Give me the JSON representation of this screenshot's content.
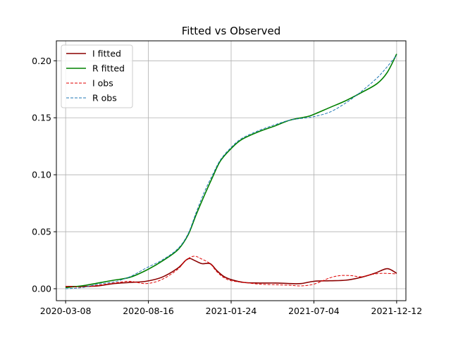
{
  "chart_data": {
    "type": "line",
    "title": "Fitted vs Observed",
    "xlabel": "",
    "ylabel": "",
    "x_type": "date",
    "xlim": [
      "2020-02-19",
      "2021-12-30"
    ],
    "ylim": [
      -0.0105,
      0.2175
    ],
    "x_ticks": [
      "2020-03-08",
      "2020-08-16",
      "2021-01-24",
      "2021-07-04",
      "2021-12-12"
    ],
    "y_ticks": [
      0.0,
      0.05,
      0.1,
      0.15,
      0.2
    ],
    "y_tick_labels": [
      "0.00",
      "0.05",
      "0.10",
      "0.15",
      "0.20"
    ],
    "grid": true,
    "legend_position": "top-left",
    "series": [
      {
        "name": "I fitted",
        "color": "#8b0000",
        "style": "solid",
        "points": [
          [
            "2020-03-08",
            0.002
          ],
          [
            "2020-04-09",
            0.002
          ],
          [
            "2020-05-10",
            0.0025
          ],
          [
            "2020-06-10",
            0.0045
          ],
          [
            "2020-07-11",
            0.0055
          ],
          [
            "2020-08-11",
            0.0065
          ],
          [
            "2020-09-11",
            0.01
          ],
          [
            "2020-10-12",
            0.018
          ],
          [
            "2020-10-28",
            0.025
          ],
          [
            "2020-11-05",
            0.0265
          ],
          [
            "2020-11-13",
            0.025
          ],
          [
            "2020-11-28",
            0.022
          ],
          [
            "2020-12-14",
            0.022
          ],
          [
            "2020-12-27",
            0.016
          ],
          [
            "2021-01-09",
            0.011
          ],
          [
            "2021-01-24",
            0.008
          ],
          [
            "2021-02-18",
            0.0055
          ],
          [
            "2021-03-20",
            0.005
          ],
          [
            "2021-04-20",
            0.005
          ],
          [
            "2021-05-19",
            0.0045
          ],
          [
            "2021-06-09",
            0.0045
          ],
          [
            "2021-07-04",
            0.0065
          ],
          [
            "2021-08-04",
            0.007
          ],
          [
            "2021-09-04",
            0.0075
          ],
          [
            "2021-10-04",
            0.01
          ],
          [
            "2021-10-30",
            0.0135
          ],
          [
            "2021-11-19",
            0.0172
          ],
          [
            "2021-11-29",
            0.017
          ],
          [
            "2021-12-12",
            0.0135
          ]
        ]
      },
      {
        "name": "R fitted",
        "color": "#008000",
        "style": "solid",
        "points": [
          [
            "2020-03-08",
            0.001
          ],
          [
            "2020-04-09",
            0.0025
          ],
          [
            "2020-05-10",
            0.005
          ],
          [
            "2020-06-10",
            0.0075
          ],
          [
            "2020-07-11",
            0.01
          ],
          [
            "2020-08-11",
            0.016
          ],
          [
            "2020-09-11",
            0.024
          ],
          [
            "2020-10-12",
            0.034
          ],
          [
            "2020-11-01",
            0.047
          ],
          [
            "2020-11-17",
            0.065
          ],
          [
            "2020-12-03",
            0.082
          ],
          [
            "2020-12-19",
            0.098
          ],
          [
            "2021-01-03",
            0.112
          ],
          [
            "2021-01-24",
            0.123
          ],
          [
            "2021-02-14",
            0.131
          ],
          [
            "2021-03-20",
            0.138
          ],
          [
            "2021-04-20",
            0.143
          ],
          [
            "2021-05-19",
            0.148
          ],
          [
            "2021-06-21",
            0.151
          ],
          [
            "2021-07-04",
            0.153
          ],
          [
            "2021-08-04",
            0.159
          ],
          [
            "2021-09-04",
            0.165
          ],
          [
            "2021-10-04",
            0.172
          ],
          [
            "2021-11-04",
            0.18
          ],
          [
            "2021-11-24",
            0.19
          ],
          [
            "2021-12-12",
            0.206
          ]
        ]
      },
      {
        "name": "I obs",
        "color": "#e00000",
        "style": "dashed",
        "points": [
          [
            "2020-03-08",
            0.002
          ],
          [
            "2020-04-09",
            0.0015
          ],
          [
            "2020-05-10",
            0.003
          ],
          [
            "2020-06-10",
            0.005
          ],
          [
            "2020-07-11",
            0.0065
          ],
          [
            "2020-08-11",
            0.0045
          ],
          [
            "2020-09-11",
            0.008
          ],
          [
            "2020-10-12",
            0.017
          ],
          [
            "2020-10-28",
            0.025
          ],
          [
            "2020-11-13",
            0.0285
          ],
          [
            "2020-11-28",
            0.026
          ],
          [
            "2020-12-14",
            0.022
          ],
          [
            "2020-12-27",
            0.015
          ],
          [
            "2021-01-09",
            0.01
          ],
          [
            "2021-01-24",
            0.007
          ],
          [
            "2021-02-18",
            0.0055
          ],
          [
            "2021-03-20",
            0.004
          ],
          [
            "2021-04-20",
            0.0035
          ],
          [
            "2021-05-19",
            0.003
          ],
          [
            "2021-06-09",
            0.0025
          ],
          [
            "2021-07-04",
            0.004
          ],
          [
            "2021-08-04",
            0.0095
          ],
          [
            "2021-08-24",
            0.0115
          ],
          [
            "2021-09-14",
            0.0115
          ],
          [
            "2021-10-04",
            0.0105
          ],
          [
            "2021-10-24",
            0.0125
          ],
          [
            "2021-11-14",
            0.0135
          ],
          [
            "2021-12-12",
            0.013
          ]
        ]
      },
      {
        "name": "R obs",
        "color": "#1f77b4",
        "style": "dashed",
        "points": [
          [
            "2020-03-08",
            0.0
          ],
          [
            "2020-04-09",
            0.001
          ],
          [
            "2020-05-10",
            0.004
          ],
          [
            "2020-06-10",
            0.006
          ],
          [
            "2020-07-11",
            0.0105
          ],
          [
            "2020-08-11",
            0.018
          ],
          [
            "2020-09-11",
            0.025
          ],
          [
            "2020-10-12",
            0.035
          ],
          [
            "2020-11-01",
            0.048
          ],
          [
            "2020-11-17",
            0.067
          ],
          [
            "2020-12-03",
            0.085
          ],
          [
            "2020-12-19",
            0.1
          ],
          [
            "2021-01-03",
            0.113
          ],
          [
            "2021-01-24",
            0.124
          ],
          [
            "2021-02-14",
            0.132
          ],
          [
            "2021-03-20",
            0.139
          ],
          [
            "2021-04-20",
            0.144
          ],
          [
            "2021-05-19",
            0.148
          ],
          [
            "2021-06-21",
            0.15
          ],
          [
            "2021-07-04",
            0.151
          ],
          [
            "2021-08-04",
            0.155
          ],
          [
            "2021-09-04",
            0.163
          ],
          [
            "2021-10-04",
            0.173
          ],
          [
            "2021-11-04",
            0.185
          ],
          [
            "2021-11-24",
            0.195
          ],
          [
            "2021-12-12",
            0.205
          ]
        ]
      }
    ]
  }
}
